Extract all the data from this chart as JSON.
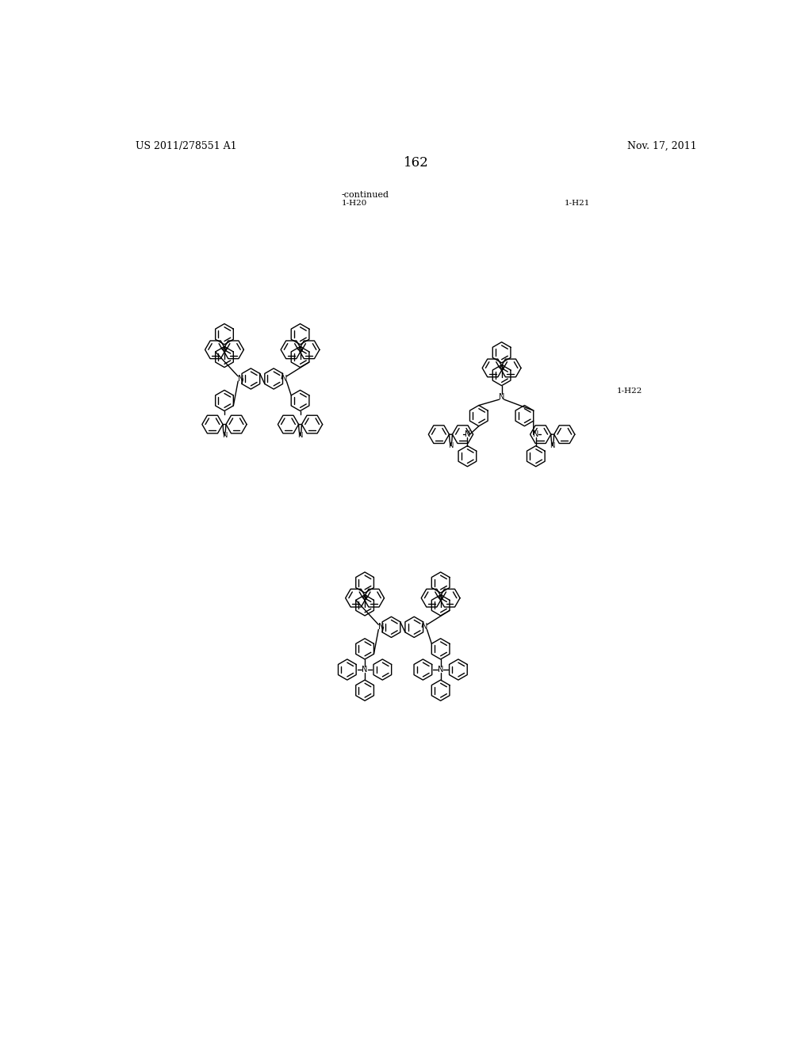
{
  "page_number": "162",
  "header_left": "US 2011/278551 A1",
  "header_right": "Nov. 17, 2011",
  "continued_label": "-continued",
  "compound_labels": [
    "1-H20",
    "1-H21",
    "1-H22"
  ],
  "background_color": "#ffffff",
  "text_color": "#000000",
  "line_color": "#000000",
  "figsize": [
    10.24,
    13.2
  ],
  "dpi": 100
}
